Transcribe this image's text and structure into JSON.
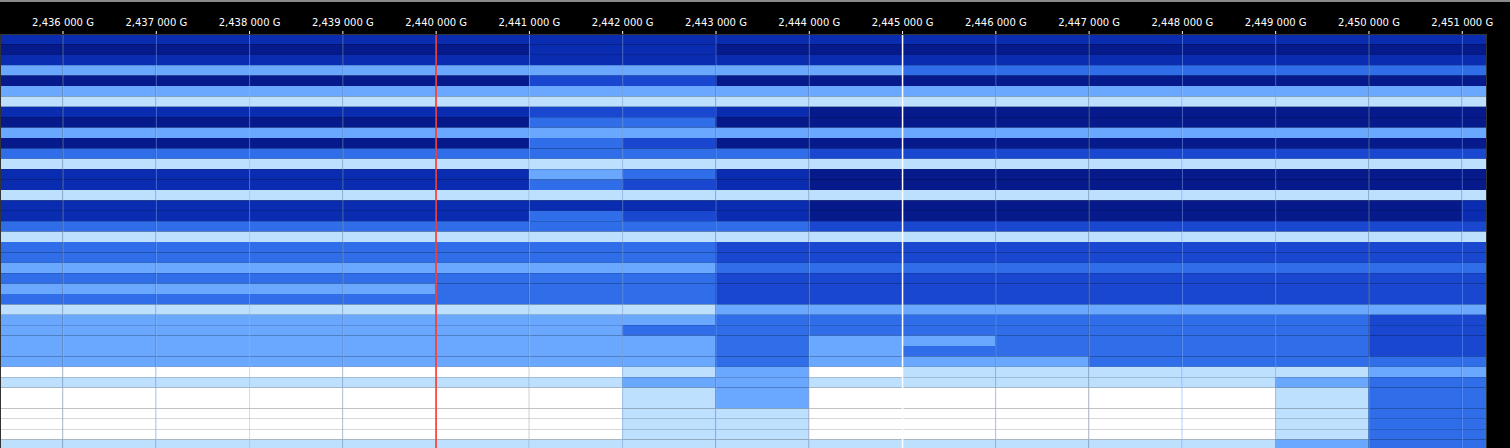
{
  "chart_data": {
    "type": "heatmap",
    "bins": [
      2.43533,
      2.436,
      2.437,
      2.438,
      2.439,
      2.44,
      2.441,
      2.442,
      2.443,
      2.444,
      2.445,
      2.446,
      2.447,
      2.448,
      2.449,
      2.45,
      2.451,
      2.45126
    ],
    "xlim": [
      2.43533,
      2.45126
    ],
    "xticks": [
      {
        "value": 2.436,
        "label": "2,436 000 G"
      },
      {
        "value": 2.437,
        "label": "2,437 000 G"
      },
      {
        "value": 2.438,
        "label": "2,438 000 G"
      },
      {
        "value": 2.439,
        "label": "2,439 000 G"
      },
      {
        "value": 2.44,
        "label": "2,440 000 G"
      },
      {
        "value": 2.441,
        "label": "2,441 000 G"
      },
      {
        "value": 2.442,
        "label": "2,442 000 G"
      },
      {
        "value": 2.443,
        "label": "2,443 000 G"
      },
      {
        "value": 2.444,
        "label": "2,444 000 G"
      },
      {
        "value": 2.445,
        "label": "2,445 000 G"
      },
      {
        "value": 2.446,
        "label": "2,446 000 G"
      },
      {
        "value": 2.447,
        "label": "2,447 000 G"
      },
      {
        "value": 2.448,
        "label": "2,448 000 G"
      },
      {
        "value": 2.449,
        "label": "2,449 000 G"
      },
      {
        "value": 2.45,
        "label": "2,450 000 G"
      },
      {
        "value": 2.451,
        "label": "2,451 000 G"
      }
    ],
    "zlim": [
      0,
      10
    ],
    "grid": true,
    "tick_labels": "x",
    "cursors": [
      {
        "value": 2.44,
        "color": "#ff3b30"
      },
      {
        "value": 2.445,
        "color": "#ffffff"
      }
    ],
    "cells": [
      [
        3,
        3,
        3,
        3,
        3,
        3,
        3,
        3,
        3,
        3,
        3,
        3,
        3,
        3,
        3,
        3,
        3
      ],
      [
        2,
        2,
        2,
        2,
        2,
        2,
        3,
        3,
        2,
        2,
        2,
        2,
        2,
        2,
        2,
        2,
        2
      ],
      [
        3,
        3,
        3,
        3,
        3,
        3,
        3,
        3,
        3,
        3,
        3,
        3,
        3,
        3,
        3,
        3,
        3
      ],
      [
        6,
        6,
        6,
        6,
        6,
        6,
        6,
        6,
        6,
        6,
        5,
        5,
        5,
        5,
        5,
        5,
        5
      ],
      [
        2,
        2,
        2,
        2,
        2,
        2,
        4,
        4,
        2,
        2,
        2,
        2,
        2,
        2,
        2,
        2,
        2
      ],
      [
        6,
        6,
        6,
        6,
        6,
        6,
        6,
        6,
        6,
        6,
        6,
        6,
        6,
        6,
        6,
        6,
        6
      ],
      [
        7,
        7,
        7,
        7,
        7,
        7,
        7,
        7,
        7,
        7,
        7,
        7,
        7,
        7,
        7,
        7,
        7
      ],
      [
        3,
        3,
        3,
        3,
        3,
        3,
        4,
        4,
        3,
        2,
        2,
        2,
        2,
        2,
        2,
        2,
        2
      ],
      [
        2,
        2,
        2,
        2,
        2,
        2,
        5,
        5,
        2,
        2,
        2,
        2,
        2,
        2,
        2,
        2,
        2
      ],
      [
        6,
        6,
        6,
        6,
        6,
        6,
        6,
        6,
        6,
        6,
        6,
        6,
        6,
        6,
        6,
        6,
        6
      ],
      [
        2,
        2,
        2,
        2,
        2,
        2,
        5,
        4,
        2,
        2,
        2,
        2,
        2,
        2,
        2,
        2,
        2
      ],
      [
        5,
        5,
        5,
        5,
        5,
        5,
        5,
        5,
        5,
        4,
        4,
        4,
        4,
        4,
        4,
        4,
        4
      ],
      [
        7,
        7,
        7,
        7,
        7,
        7,
        7,
        7,
        7,
        7,
        7,
        7,
        7,
        7,
        7,
        7,
        7
      ],
      [
        3,
        3,
        3,
        3,
        3,
        3,
        6,
        5,
        3,
        2,
        2,
        2,
        2,
        2,
        2,
        2,
        2
      ],
      [
        3,
        3,
        3,
        3,
        3,
        3,
        5,
        4,
        3,
        2,
        2,
        2,
        2,
        2,
        2,
        2,
        2
      ],
      [
        7,
        7,
        7,
        7,
        7,
        7,
        7,
        7,
        7,
        7,
        7,
        7,
        7,
        7,
        7,
        7,
        7
      ],
      [
        3,
        3,
        3,
        3,
        3,
        3,
        3,
        3,
        3,
        2,
        2,
        2,
        2,
        2,
        2,
        2,
        3
      ],
      [
        3,
        3,
        3,
        3,
        3,
        3,
        5,
        4,
        3,
        2,
        2,
        2,
        2,
        2,
        2,
        2,
        3
      ],
      [
        5,
        5,
        5,
        5,
        5,
        5,
        5,
        5,
        5,
        4,
        4,
        4,
        4,
        4,
        4,
        4,
        4
      ],
      [
        7,
        7,
        7,
        7,
        7,
        7,
        7,
        7,
        7,
        7,
        7,
        7,
        7,
        7,
        7,
        7,
        7
      ],
      [
        5,
        5,
        5,
        5,
        5,
        5,
        5,
        5,
        4,
        4,
        4,
        4,
        4,
        4,
        4,
        4,
        4
      ],
      [
        5,
        5,
        5,
        5,
        5,
        5,
        5,
        5,
        4,
        4,
        4,
        4,
        4,
        4,
        4,
        4,
        4
      ],
      [
        6,
        6,
        6,
        6,
        6,
        6,
        6,
        6,
        5,
        5,
        5,
        5,
        5,
        5,
        5,
        5,
        5
      ],
      [
        5,
        5,
        5,
        5,
        5,
        5,
        5,
        5,
        4,
        4,
        4,
        4,
        4,
        4,
        4,
        4,
        4
      ],
      [
        6,
        6,
        6,
        6,
        6,
        5,
        5,
        5,
        4,
        4,
        4,
        4,
        4,
        4,
        4,
        4,
        4
      ],
      [
        5,
        5,
        5,
        5,
        5,
        5,
        5,
        5,
        4,
        4,
        4,
        4,
        4,
        4,
        4,
        4,
        4
      ],
      [
        7,
        7,
        7,
        7,
        7,
        7,
        7,
        7,
        6,
        6,
        6,
        6,
        6,
        6,
        6,
        6,
        6
      ],
      [
        6,
        6,
        6,
        6,
        6,
        6,
        6,
        6,
        5,
        5,
        5,
        5,
        5,
        5,
        5,
        4,
        4
      ],
      [
        6,
        6,
        6,
        6,
        6,
        6,
        6,
        5,
        5,
        5,
        5,
        5,
        5,
        5,
        5,
        4,
        4
      ],
      [
        6,
        6,
        6,
        6,
        6,
        6,
        6,
        6,
        5,
        6,
        6,
        5,
        5,
        5,
        5,
        4,
        4
      ],
      [
        6,
        6,
        6,
        6,
        6,
        6,
        6,
        6,
        5,
        6,
        5,
        5,
        5,
        5,
        5,
        4,
        4
      ],
      [
        6,
        6,
        6,
        6,
        6,
        6,
        6,
        6,
        5,
        6,
        6,
        6,
        5,
        5,
        5,
        5,
        5
      ],
      [
        8,
        8,
        8,
        8,
        8,
        8,
        8,
        7,
        6,
        8,
        7,
        7,
        7,
        7,
        7,
        6,
        6
      ],
      [
        7,
        7,
        7,
        7,
        7,
        7,
        7,
        6,
        6,
        7,
        7,
        7,
        7,
        7,
        6,
        5,
        5
      ],
      [
        8,
        8,
        8,
        8,
        8,
        8,
        8,
        7,
        6,
        8,
        8,
        8,
        8,
        8,
        7,
        5,
        5
      ],
      [
        8,
        8,
        8,
        8,
        8,
        8,
        8,
        7,
        6,
        8,
        8,
        8,
        8,
        8,
        7,
        5,
        5
      ],
      [
        8,
        8,
        8,
        8,
        8,
        8,
        8,
        7,
        7,
        8,
        8,
        8,
        8,
        8,
        7,
        5,
        5
      ],
      [
        8,
        8,
        8,
        8,
        8,
        8,
        8,
        7,
        7,
        8,
        8,
        8,
        8,
        8,
        7,
        5,
        5
      ],
      [
        8,
        8,
        8,
        8,
        8,
        8,
        8,
        7,
        7,
        8,
        8,
        8,
        8,
        8,
        7,
        5,
        5
      ],
      [
        7,
        7,
        7,
        7,
        7,
        7,
        7,
        7,
        7,
        7,
        7,
        7,
        7,
        7,
        6,
        5,
        5
      ]
    ]
  }
}
